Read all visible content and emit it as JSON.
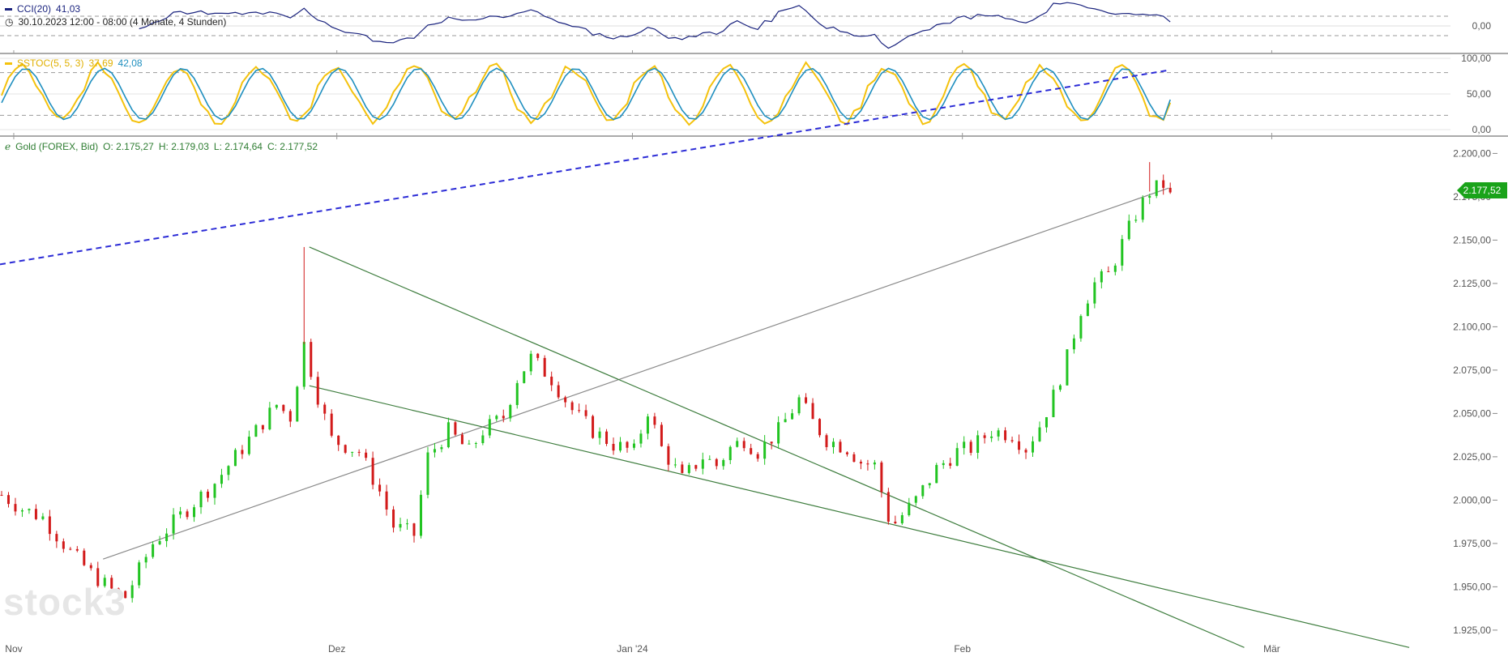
{
  "indicators": {
    "cci": {
      "label": "CCI(20)",
      "value": "41,03",
      "color": "#1a237e",
      "axis_ticks": [
        "0,00"
      ]
    },
    "timeframe": "30.10.2023 12:00 - 08:00   (4 Monate, 4 Stunden)",
    "stoch": {
      "label": "SSTOC(5, 5, 3)",
      "k_value": "37,69",
      "d_value": "42,08",
      "k_color": "#f4c20d",
      "d_color": "#1f8fbf",
      "axis_ticks": [
        "100,00",
        "50,00",
        "0,00"
      ]
    }
  },
  "gold_legend": {
    "name": "Gold (FOREX, Bid)",
    "open": "O: 2.175,27",
    "high": "H: 2.179,03",
    "low": "L: 2.174,64",
    "close": "C: 2.177,52",
    "color": "#2e7d32"
  },
  "price_tag": "2.177,52",
  "watermark": "stock3",
  "chart_data": {
    "type": "candlestick",
    "series_name": "Gold (FOREX, Bid)",
    "interval": "4 Stunden",
    "x_labels": [
      "Nov",
      "Dez",
      "Jan '24",
      "Feb",
      "Mär"
    ],
    "y_ticks": [
      "2.200,00",
      "2.175,00",
      "2.150,00",
      "2.125,00",
      "2.100,00",
      "2.075,00",
      "2.050,00",
      "2.025,00",
      "2.000,00",
      "1.975,00",
      "1.950,00",
      "1.925,00"
    ],
    "ylim": [
      1917,
      2210
    ],
    "up_color": "#22c422",
    "down_color": "#d21a1a",
    "last_close": 2177.52,
    "price_path": [
      [
        0,
        2003
      ],
      [
        3,
        1995
      ],
      [
        6,
        1990
      ],
      [
        10,
        1970
      ],
      [
        13,
        1958
      ],
      [
        16,
        1948
      ],
      [
        18,
        1944
      ],
      [
        22,
        1975
      ],
      [
        27,
        1995
      ],
      [
        31,
        2010
      ],
      [
        35,
        2030
      ],
      [
        38,
        2045
      ],
      [
        40,
        2055
      ],
      [
        42,
        2048
      ],
      [
        44,
        2090
      ],
      [
        46,
        2060
      ],
      [
        48,
        2035
      ],
      [
        52,
        2028
      ],
      [
        55,
        2005
      ],
      [
        57,
        1985
      ],
      [
        60,
        1980
      ],
      [
        62,
        2025
      ],
      [
        65,
        2040
      ],
      [
        68,
        2028
      ],
      [
        70,
        2040
      ],
      [
        73,
        2048
      ],
      [
        75,
        2070
      ],
      [
        77,
        2082
      ],
      [
        80,
        2070
      ],
      [
        83,
        2052
      ],
      [
        86,
        2040
      ],
      [
        89,
        2032
      ],
      [
        92,
        2028
      ],
      [
        94,
        2052
      ],
      [
        96,
        2030
      ],
      [
        99,
        2012
      ],
      [
        102,
        2025
      ],
      [
        104,
        2020
      ],
      [
        106,
        2030
      ],
      [
        108,
        2035
      ],
      [
        110,
        2028
      ],
      [
        113,
        2040
      ],
      [
        116,
        2058
      ],
      [
        118,
        2045
      ],
      [
        120,
        2035
      ],
      [
        123,
        2030
      ],
      [
        125,
        2022
      ],
      [
        127,
        2020
      ],
      [
        129,
        1990
      ],
      [
        130,
        1987
      ],
      [
        133,
        2000
      ],
      [
        136,
        2018
      ],
      [
        139,
        2028
      ],
      [
        141,
        2030
      ],
      [
        144,
        2040
      ],
      [
        147,
        2038
      ],
      [
        149,
        2030
      ],
      [
        151,
        2043
      ],
      [
        153,
        2060
      ],
      [
        155,
        2082
      ],
      [
        157,
        2110
      ],
      [
        159,
        2125
      ],
      [
        161,
        2130
      ],
      [
        163,
        2148
      ],
      [
        165,
        2165
      ],
      [
        167,
        2178
      ],
      [
        169,
        2182
      ],
      [
        170,
        2177.52
      ]
    ],
    "trendlines": [
      {
        "style": "dashed",
        "color": "#2b2bd6",
        "from": [
          0,
          2136
        ],
        "to": [
          170,
          2248
        ]
      },
      {
        "style": "solid",
        "color": "#8a8a8a",
        "from": [
          15,
          1966
        ],
        "to": [
          170,
          2180
        ]
      },
      {
        "style": "solid",
        "color": "#3e7d3e",
        "from": [
          45,
          2146
        ],
        "to": [
          181,
          1915
        ]
      },
      {
        "style": "solid",
        "color": "#3e7d3e",
        "from": [
          45,
          2066
        ],
        "to": [
          205,
          1915
        ]
      }
    ],
    "cci_levels": [
      100,
      -100
    ],
    "stoch_levels": [
      80,
      20
    ],
    "cci_last": 41.03,
    "stoch_k_last": 37.69,
    "stoch_d_last": 42.08
  }
}
